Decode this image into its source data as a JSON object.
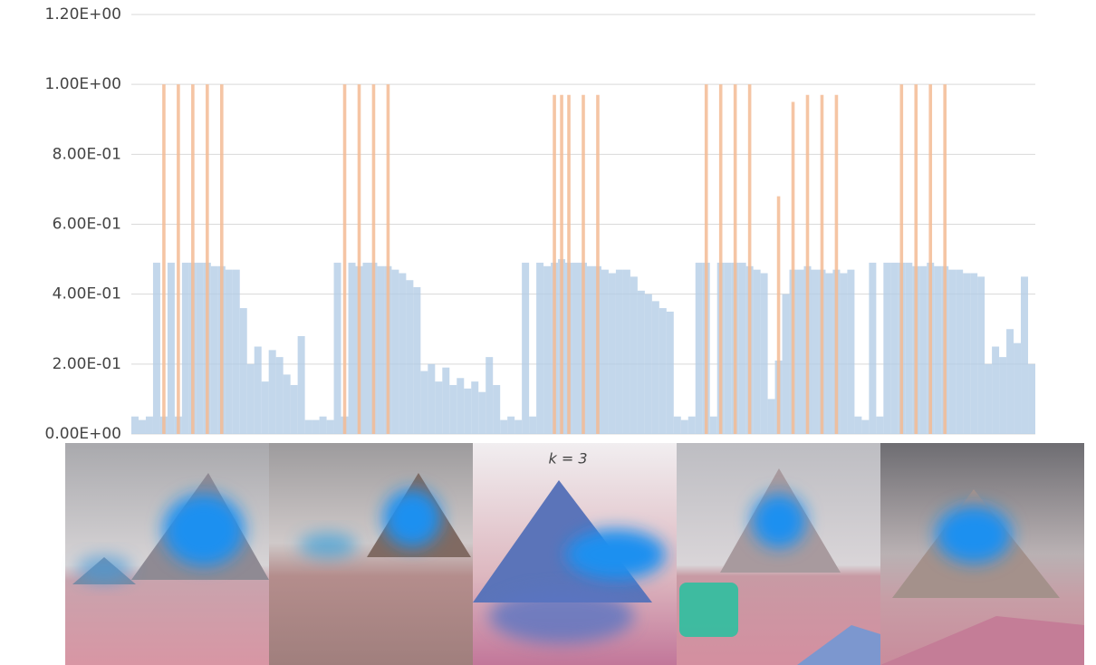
{
  "chart_data": {
    "type": "bar",
    "caption": "k = 3",
    "ylim": [
      0,
      1.2
    ],
    "yticks": [
      {
        "value": 0,
        "label": "0.00E+00"
      },
      {
        "value": 0.2,
        "label": "2.00E-01"
      },
      {
        "value": 0.4,
        "label": "4.00E-01"
      },
      {
        "value": 0.6,
        "label": "6.00E-01"
      },
      {
        "value": 0.8,
        "label": "8.00E-01"
      },
      {
        "value": 1.0,
        "label": "1.00E+00"
      },
      {
        "value": 1.2,
        "label": "1.20E+00"
      }
    ],
    "grid": true,
    "series": [
      {
        "color": "#b4cde6",
        "values": [
          0.05,
          0.04,
          0.05,
          0.49,
          0.05,
          0.49,
          0.05,
          0.49,
          0.49,
          0.49,
          0.49,
          0.48,
          0.48,
          0.47,
          0.47,
          0.36,
          0.2,
          0.25,
          0.15,
          0.24,
          0.22,
          0.17,
          0.14,
          0.28,
          0.04,
          0.04,
          0.05,
          0.04,
          0.49,
          0.05,
          0.49,
          0.48,
          0.49,
          0.49,
          0.48,
          0.48,
          0.47,
          0.46,
          0.44,
          0.42,
          0.18,
          0.2,
          0.15,
          0.19,
          0.14,
          0.16,
          0.13,
          0.15,
          0.12,
          0.22,
          0.14,
          0.04,
          0.05,
          0.04,
          0.49,
          0.05,
          0.49,
          0.48,
          0.49,
          0.5,
          0.49,
          0.49,
          0.49,
          0.48,
          0.48,
          0.47,
          0.46,
          0.47,
          0.47,
          0.45,
          0.41,
          0.4,
          0.38,
          0.36,
          0.35,
          0.05,
          0.04,
          0.05,
          0.49,
          0.49,
          0.05,
          0.49,
          0.49,
          0.49,
          0.49,
          0.48,
          0.47,
          0.46,
          0.1,
          0.21,
          0.4,
          0.47,
          0.47,
          0.48,
          0.47,
          0.47,
          0.46,
          0.47,
          0.46,
          0.47,
          0.05,
          0.04,
          0.49,
          0.05,
          0.49,
          0.49,
          0.49,
          0.49,
          0.48,
          0.48,
          0.49,
          0.48,
          0.48,
          0.47,
          0.47,
          0.46,
          0.46,
          0.45,
          0.2,
          0.25,
          0.22,
          0.3,
          0.26,
          0.45,
          0.2
        ]
      },
      {
        "color": "#f3bb94",
        "values": [
          0,
          0,
          0,
          0,
          1,
          0,
          1,
          0,
          1,
          0,
          1,
          0,
          1,
          0,
          0,
          0,
          0,
          0,
          0,
          0,
          0,
          0,
          0,
          0,
          0,
          0,
          0,
          0,
          0,
          1,
          0,
          1,
          0,
          1,
          0,
          1,
          0,
          0,
          0,
          0,
          0,
          0,
          0,
          0,
          0,
          0,
          0,
          0,
          0,
          0,
          0,
          0,
          0,
          0,
          0,
          0,
          0,
          0,
          0.97,
          0.97,
          0.97,
          0,
          0.97,
          0,
          0.97,
          0,
          0,
          0,
          0,
          0,
          0,
          0,
          0,
          0,
          0,
          0,
          0,
          0,
          0,
          1,
          0,
          1,
          0,
          1,
          0,
          1,
          0,
          0,
          0,
          0.68,
          0,
          0.95,
          0,
          0.97,
          0,
          0.97,
          0,
          0.97,
          0,
          0,
          0,
          0,
          0,
          0,
          0,
          0,
          1,
          0,
          1,
          0,
          1,
          0,
          1,
          0,
          0,
          0,
          0,
          0,
          0,
          0,
          0,
          0,
          0,
          0,
          0
        ]
      }
    ]
  }
}
